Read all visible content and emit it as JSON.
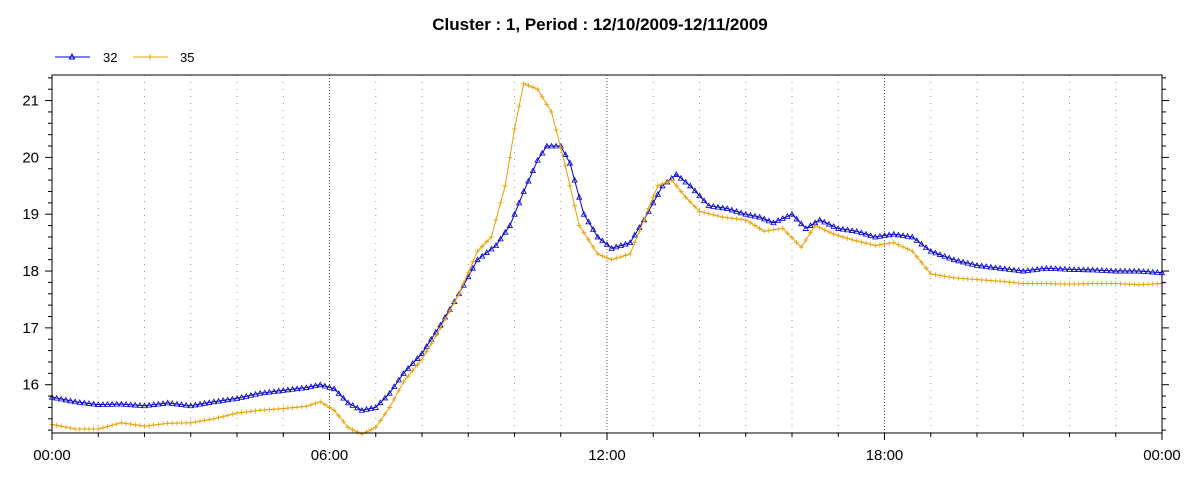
{
  "chart_data": {
    "type": "line",
    "title": "Cluster : 1, Period : 12/10/2009-12/11/2009",
    "xlabel": "",
    "ylabel": "",
    "x_ticks": [
      "00:00",
      "06:00",
      "12:00",
      "18:00",
      "00:00"
    ],
    "y_ticks": [
      16,
      17,
      18,
      19,
      20,
      21
    ],
    "xlim_hours": [
      0,
      24
    ],
    "ylim": [
      15.15,
      21.45
    ],
    "grid": "vertical dotted, dashed at 6-hour ticks",
    "legend_position": "top-left",
    "series": [
      {
        "name": "32",
        "color": "#0000cc",
        "marker": "triangle",
        "points": [
          [
            0,
            15.78
          ],
          [
            0.5,
            15.7
          ],
          [
            1,
            15.65
          ],
          [
            1.5,
            15.66
          ],
          [
            2,
            15.63
          ],
          [
            2.5,
            15.68
          ],
          [
            3,
            15.63
          ],
          [
            3.5,
            15.7
          ],
          [
            4,
            15.76
          ],
          [
            4.5,
            15.85
          ],
          [
            5,
            15.9
          ],
          [
            5.5,
            15.95
          ],
          [
            5.8,
            16.0
          ],
          [
            6.1,
            15.93
          ],
          [
            6.4,
            15.68
          ],
          [
            6.7,
            15.55
          ],
          [
            7.0,
            15.6
          ],
          [
            7.3,
            15.85
          ],
          [
            7.6,
            16.2
          ],
          [
            8.0,
            16.55
          ],
          [
            8.4,
            17.05
          ],
          [
            8.8,
            17.6
          ],
          [
            9.2,
            18.2
          ],
          [
            9.6,
            18.45
          ],
          [
            9.9,
            18.8
          ],
          [
            10.2,
            19.4
          ],
          [
            10.5,
            19.95
          ],
          [
            10.7,
            20.2
          ],
          [
            11.0,
            20.2
          ],
          [
            11.2,
            19.9
          ],
          [
            11.5,
            19.0
          ],
          [
            11.8,
            18.6
          ],
          [
            12.1,
            18.4
          ],
          [
            12.5,
            18.5
          ],
          [
            12.8,
            18.9
          ],
          [
            13.2,
            19.5
          ],
          [
            13.5,
            19.7
          ],
          [
            13.8,
            19.5
          ],
          [
            14.2,
            19.15
          ],
          [
            14.6,
            19.1
          ],
          [
            15.0,
            19.0
          ],
          [
            15.3,
            18.95
          ],
          [
            15.6,
            18.85
          ],
          [
            16.0,
            19.0
          ],
          [
            16.3,
            18.75
          ],
          [
            16.6,
            18.9
          ],
          [
            17.0,
            18.75
          ],
          [
            17.4,
            18.7
          ],
          [
            17.8,
            18.6
          ],
          [
            18.2,
            18.65
          ],
          [
            18.6,
            18.6
          ],
          [
            19.0,
            18.35
          ],
          [
            19.5,
            18.2
          ],
          [
            20.0,
            18.1
          ],
          [
            20.5,
            18.05
          ],
          [
            21.0,
            18.0
          ],
          [
            21.5,
            18.05
          ],
          [
            22.0,
            18.03
          ],
          [
            22.5,
            18.02
          ],
          [
            23.0,
            18.0
          ],
          [
            23.5,
            18.0
          ],
          [
            24.0,
            17.97
          ]
        ]
      },
      {
        "name": "35",
        "color": "#e8a000",
        "marker": "plus",
        "points": [
          [
            0,
            15.3
          ],
          [
            0.5,
            15.22
          ],
          [
            1,
            15.22
          ],
          [
            1.5,
            15.33
          ],
          [
            2,
            15.27
          ],
          [
            2.5,
            15.32
          ],
          [
            3,
            15.33
          ],
          [
            3.5,
            15.4
          ],
          [
            4,
            15.5
          ],
          [
            4.5,
            15.55
          ],
          [
            5,
            15.58
          ],
          [
            5.5,
            15.62
          ],
          [
            5.8,
            15.7
          ],
          [
            6.1,
            15.55
          ],
          [
            6.4,
            15.25
          ],
          [
            6.7,
            15.13
          ],
          [
            7.0,
            15.25
          ],
          [
            7.3,
            15.6
          ],
          [
            7.6,
            16.05
          ],
          [
            8.0,
            16.45
          ],
          [
            8.4,
            17.0
          ],
          [
            8.8,
            17.6
          ],
          [
            9.2,
            18.35
          ],
          [
            9.5,
            18.6
          ],
          [
            9.8,
            19.5
          ],
          [
            10.0,
            20.5
          ],
          [
            10.2,
            21.3
          ],
          [
            10.5,
            21.2
          ],
          [
            10.8,
            20.8
          ],
          [
            11.1,
            19.85
          ],
          [
            11.4,
            18.8
          ],
          [
            11.8,
            18.3
          ],
          [
            12.1,
            18.2
          ],
          [
            12.5,
            18.3
          ],
          [
            12.8,
            18.9
          ],
          [
            13.1,
            19.5
          ],
          [
            13.4,
            19.6
          ],
          [
            13.7,
            19.3
          ],
          [
            14.0,
            19.05
          ],
          [
            14.5,
            18.95
          ],
          [
            15.0,
            18.9
          ],
          [
            15.4,
            18.7
          ],
          [
            15.8,
            18.75
          ],
          [
            16.2,
            18.42
          ],
          [
            16.5,
            18.8
          ],
          [
            16.9,
            18.65
          ],
          [
            17.3,
            18.55
          ],
          [
            17.8,
            18.45
          ],
          [
            18.2,
            18.5
          ],
          [
            18.6,
            18.35
          ],
          [
            19.0,
            17.95
          ],
          [
            19.5,
            17.88
          ],
          [
            20.0,
            17.85
          ],
          [
            20.5,
            17.82
          ],
          [
            21.0,
            17.78
          ],
          [
            21.5,
            17.78
          ],
          [
            22.0,
            17.77
          ],
          [
            22.5,
            17.78
          ],
          [
            23.0,
            17.78
          ],
          [
            23.5,
            17.76
          ],
          [
            24.0,
            17.78
          ]
        ]
      }
    ]
  }
}
